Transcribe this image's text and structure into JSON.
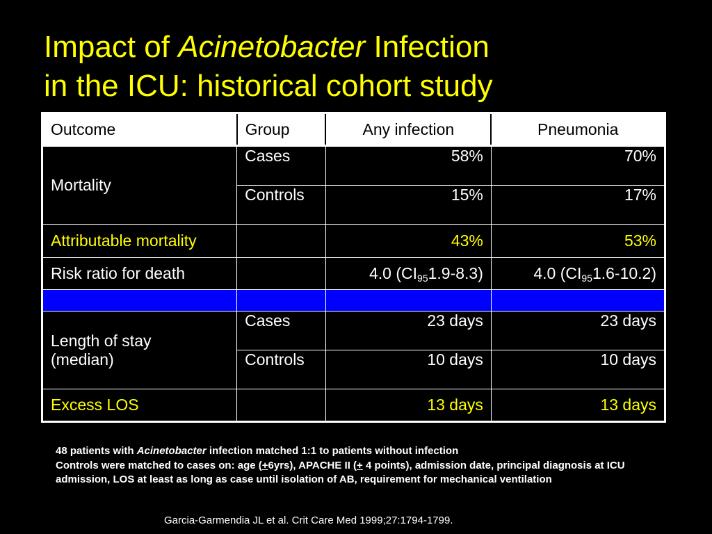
{
  "title": {
    "line1_prefix": "Impact of ",
    "line1_italic": "Acinetobacter",
    "line1_suffix": " Infection",
    "line2": "in the ICU: historical cohort study"
  },
  "table": {
    "headers": [
      "Outcome",
      "Group",
      "Any infection",
      "Pneumonia"
    ],
    "mortality": {
      "label": "Mortality",
      "cases": {
        "group": "Cases",
        "any": "58%",
        "pneumonia": "70%"
      },
      "controls": {
        "group": "Controls",
        "any": "15%",
        "pneumonia": "17%"
      }
    },
    "attributable_mortality": {
      "label": "Attributable mortality",
      "any": "43%",
      "pneumonia": "53%"
    },
    "risk_ratio": {
      "label": "Risk ratio for death",
      "any": {
        "pre": "4.0 (CI",
        "sub": "95",
        "post": "1.9-8.3)"
      },
      "pneumonia": {
        "pre": "4.0 (CI",
        "sub": "95",
        "post": "1.6-10.2)"
      }
    },
    "length_of_stay": {
      "label_line1": "Length of stay",
      "label_line2": "(median)",
      "cases": {
        "group": "Cases",
        "any": "23 days",
        "pneumonia": "23 days"
      },
      "controls": {
        "group": "Controls",
        "any": "10 days",
        "pneumonia": "10 days"
      }
    },
    "excess_los": {
      "label": "Excess LOS",
      "any": "13 days",
      "pneumonia": "13 days"
    }
  },
  "notes": {
    "line1_prefix": "48 patients with ",
    "line1_italic": "Acinetobacter",
    "line1_suffix": " infection matched 1:1 to patients without infection",
    "line2_a": "Controls were matched to cases on: age (",
    "line2_pm1": "+",
    "line2_b": "6yrs), APACHE II (",
    "line2_pm2": "+",
    "line2_c": " 4 points), admission date, principal diagnosis at ICU admission, LOS at least as long as case until isolation of AB, requirement for mechanical ventilation"
  },
  "citation": "Garcia-Garmendia JL et al. Crit Care Med 1999;27:1794-1799.",
  "colors": {
    "background": "#000000",
    "title": "#ffff00",
    "highlight_text": "#ffff00",
    "separator_row": "#0000ff",
    "header_bg": "#ffffff"
  }
}
